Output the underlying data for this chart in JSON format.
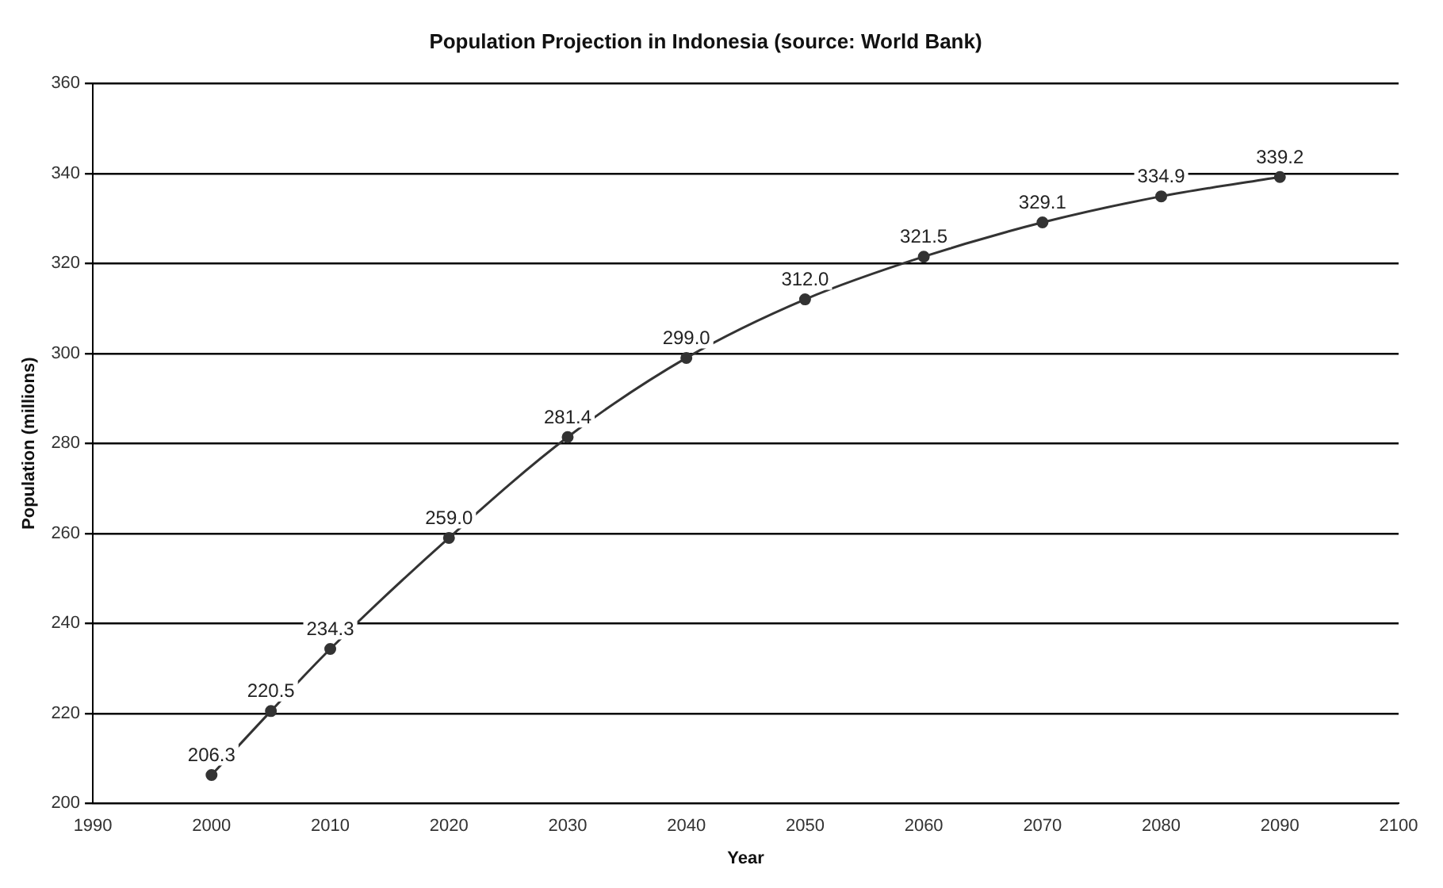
{
  "chart_data": {
    "type": "line",
    "title": "Population Projection in Indonesia (source: World Bank)",
    "xlabel": "Year",
    "ylabel": "Population (millions)",
    "x": [
      2000,
      2005,
      2010,
      2020,
      2030,
      2040,
      2050,
      2060,
      2070,
      2080,
      2090
    ],
    "series": [
      {
        "color": "#333333",
        "values": [
          206.3,
          220.5,
          234.3,
          259.0,
          281.4,
          299.0,
          312.0,
          321.5,
          329.1,
          334.9,
          339.2
        ],
        "value_labels": [
          "206.3",
          "220.5",
          "234.3",
          "259.0",
          "281.4",
          "299.0",
          "312.0",
          "321.5",
          "329.1",
          "334.9",
          "339.2"
        ]
      }
    ],
    "xlim": [
      1990,
      2100
    ],
    "xticks": [
      1990,
      2000,
      2010,
      2020,
      2030,
      2040,
      2050,
      2060,
      2070,
      2080,
      2090,
      2100
    ],
    "ylim": [
      200,
      360
    ],
    "yticks": [
      200,
      220,
      240,
      260,
      280,
      300,
      320,
      340,
      360
    ],
    "grid": "y",
    "legend": false,
    "marker": "circle",
    "line_style": "solid"
  }
}
